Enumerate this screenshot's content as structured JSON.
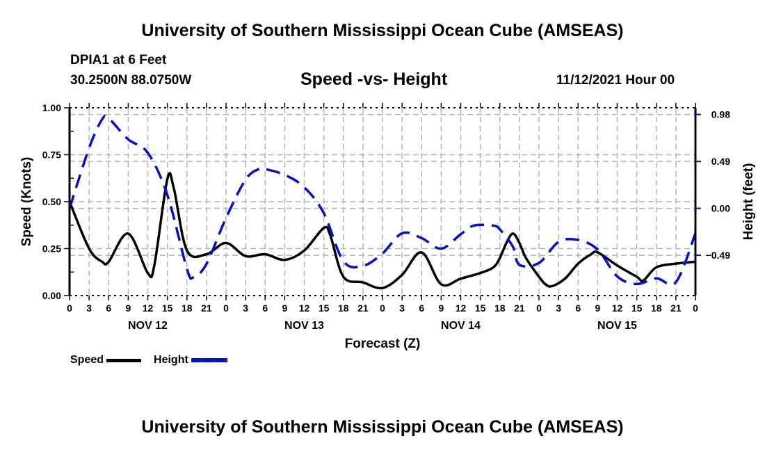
{
  "header": {
    "title": "University of Southern Mississippi Ocean Cube (AMSEAS)",
    "station": "DPIA1 at 6 Feet",
    "coordinates": "30.2500N  88.0750W",
    "subtitle": "Speed -vs- Height",
    "datetime": "11/12/2021 Hour 00"
  },
  "footer": {
    "title": "University of Southern Mississippi Ocean Cube (AMSEAS)"
  },
  "legend": {
    "speed_label": "Speed",
    "height_label": "Height"
  },
  "colors": {
    "speed": "#000000",
    "height": "#0010d0",
    "grid": "#b4b4b4"
  },
  "chart_data": {
    "type": "line",
    "title": "Speed -vs- Height",
    "xlabel": "Forecast (Z)",
    "ylabel": "Speed (Knots)",
    "y2label": "Height (feet)",
    "xlim_hours": [
      0,
      96
    ],
    "ylim": [
      0,
      1.0
    ],
    "y2lim": [
      -0.91,
      1.05
    ],
    "grid": true,
    "legend_position": "bottom-left",
    "x_tick_labels": [
      "0",
      "3",
      "6",
      "9",
      "12",
      "15",
      "18",
      "21",
      "0",
      "3",
      "6",
      "9",
      "12",
      "15",
      "18",
      "21",
      "0",
      "3",
      "6",
      "9",
      "12",
      "15",
      "18",
      "21",
      "0",
      "3",
      "6",
      "9",
      "12",
      "15",
      "18",
      "21",
      "0"
    ],
    "x_tick_hours": [
      0,
      3,
      6,
      9,
      12,
      15,
      18,
      21,
      24,
      27,
      30,
      33,
      36,
      39,
      42,
      45,
      48,
      51,
      54,
      57,
      60,
      63,
      66,
      69,
      72,
      75,
      78,
      81,
      84,
      87,
      90,
      93,
      96
    ],
    "day_labels": [
      {
        "label": "NOV 12",
        "hour": 12
      },
      {
        "label": "NOV 13",
        "hour": 36
      },
      {
        "label": "NOV 14",
        "hour": 60
      },
      {
        "label": "NOV 15",
        "hour": 84
      }
    ],
    "y_ticks": [
      {
        "value": 0.0,
        "label": "0.00"
      },
      {
        "value": 0.25,
        "label": "0.25"
      },
      {
        "value": 0.5,
        "label": "0.50"
      },
      {
        "value": 0.75,
        "label": "0.75"
      },
      {
        "value": 1.0,
        "label": "1.00"
      }
    ],
    "y2_ticks": [
      {
        "value": 0.98,
        "label": "0.98"
      },
      {
        "value": 0.49,
        "label": "0.49"
      },
      {
        "value": 0.0,
        "label": "0.00"
      },
      {
        "value": -0.49,
        "label": "−0.49"
      }
    ],
    "series": [
      {
        "name": "Speed",
        "axis": "left",
        "style": "solid",
        "x": [
          0,
          3,
          5,
          6,
          9,
          12,
          13,
          15,
          16,
          18,
          21,
          24,
          27,
          30,
          33,
          36,
          39,
          40,
          42,
          45,
          48,
          51,
          54,
          57,
          60,
          63,
          65,
          66,
          67,
          68,
          69,
          70,
          72,
          73,
          74,
          76,
          78,
          80,
          81,
          84,
          87,
          88,
          90,
          93,
          96
        ],
        "values": [
          0.5,
          0.25,
          0.18,
          0.18,
          0.33,
          0.12,
          0.16,
          0.62,
          0.57,
          0.24,
          0.22,
          0.28,
          0.21,
          0.22,
          0.19,
          0.24,
          0.36,
          0.32,
          0.1,
          0.07,
          0.04,
          0.11,
          0.23,
          0.06,
          0.09,
          0.12,
          0.15,
          0.2,
          0.28,
          0.33,
          0.28,
          0.2,
          0.1,
          0.06,
          0.05,
          0.09,
          0.17,
          0.22,
          0.23,
          0.16,
          0.1,
          0.08,
          0.15,
          0.17,
          0.18
        ]
      },
      {
        "name": "Height",
        "axis": "right",
        "style": "dashed",
        "x": [
          0,
          3,
          5,
          6,
          9,
          12,
          15,
          18,
          19,
          21,
          24,
          27,
          29,
          30,
          33,
          36,
          39,
          42,
          45,
          48,
          51,
          54,
          57,
          60,
          62,
          65,
          66,
          68,
          69,
          72,
          75,
          78,
          81,
          84,
          87,
          90,
          93,
          96
        ],
        "values": [
          0.0,
          0.63,
          0.93,
          0.94,
          0.72,
          0.58,
          0.14,
          -0.63,
          -0.72,
          -0.58,
          -0.1,
          0.3,
          0.41,
          0.41,
          0.35,
          0.22,
          -0.05,
          -0.55,
          -0.6,
          -0.47,
          -0.26,
          -0.31,
          -0.42,
          -0.27,
          -0.18,
          -0.18,
          -0.22,
          -0.4,
          -0.59,
          -0.57,
          -0.35,
          -0.33,
          -0.43,
          -0.71,
          -0.79,
          -0.73,
          -0.77,
          -0.26
        ]
      }
    ]
  }
}
